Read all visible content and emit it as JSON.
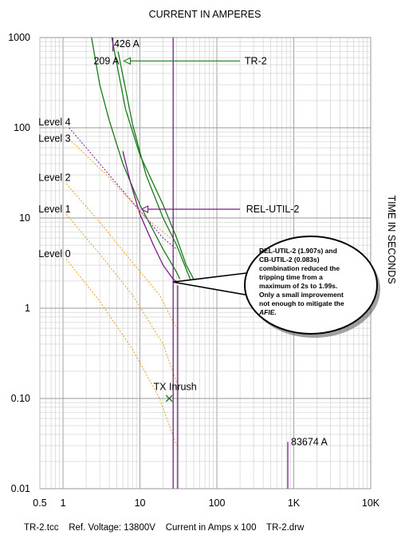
{
  "chart_data": {
    "type": "line",
    "title": "CURRENT IN AMPERES",
    "ylabel": "TIME IN SECONDS",
    "x_scale": "log",
    "y_scale": "log",
    "xlim": [
      0.5,
      10000
    ],
    "ylim": [
      0.01,
      1000
    ],
    "x_ticks": [
      {
        "v": 0.5,
        "label": "0.5"
      },
      {
        "v": 1,
        "label": "1"
      },
      {
        "v": 10,
        "label": "10"
      },
      {
        "v": 100,
        "label": "100"
      },
      {
        "v": 1000,
        "label": "1K"
      },
      {
        "v": 10000,
        "label": "10K"
      }
    ],
    "y_ticks": [
      {
        "v": 1000,
        "label": "1000"
      },
      {
        "v": 100,
        "label": "100"
      },
      {
        "v": 10,
        "label": "10"
      },
      {
        "v": 1,
        "label": "1"
      },
      {
        "v": 0.1,
        "label": "0.10"
      },
      {
        "v": 0.01,
        "label": "0.01"
      }
    ],
    "grid": true,
    "footer": "TR-2.tcc    Ref. Voltage: 13800V    Current in Amps x 100    TR-2.drw",
    "colors": {
      "green": "#1a7a1a",
      "purple": "#7a1a8a",
      "red": "#c81e1e",
      "orange": "#e8a020"
    },
    "series": [
      {
        "key": "tr2_left",
        "color": "green",
        "style": "solid",
        "points": [
          [
            2.35,
            1000
          ],
          [
            3,
            300
          ],
          [
            4,
            120
          ],
          [
            6,
            40
          ],
          [
            10,
            14
          ],
          [
            20,
            4.5
          ],
          [
            30,
            2.5
          ],
          [
            33,
            2.1
          ]
        ]
      },
      {
        "key": "tr2_right",
        "color": "green",
        "style": "solid",
        "points": [
          [
            4.3,
            1000
          ],
          [
            6.5,
            160
          ],
          [
            10,
            50
          ],
          [
            20,
            14
          ],
          [
            30,
            6
          ],
          [
            40,
            3
          ],
          [
            55,
            1.8
          ]
        ]
      },
      {
        "key": "tr2_mid",
        "color": "green",
        "style": "solid",
        "points": [
          [
            5.2,
            700
          ],
          [
            8,
            110
          ],
          [
            12,
            30
          ],
          [
            20,
            10
          ],
          [
            30,
            5
          ],
          [
            45,
            2.1
          ]
        ]
      },
      {
        "key": "rel_util_2",
        "color": "purple",
        "style": "solid",
        "points": [
          [
            6,
            55
          ],
          [
            7.5,
            25
          ],
          [
            10,
            11
          ],
          [
            15,
            5
          ],
          [
            20,
            3
          ],
          [
            27,
            2.1
          ],
          [
            32,
            1.9
          ]
        ]
      },
      {
        "key": "level4_curve",
        "color": "purple",
        "style": "dotted",
        "points": [
          [
            1.2,
            100
          ],
          [
            3,
            40
          ],
          [
            8,
            15
          ],
          [
            20,
            6
          ],
          [
            30,
            4.5
          ]
        ]
      },
      {
        "key": "level3_curve",
        "color": "orange",
        "style": "dotted",
        "points": [
          [
            1.2,
            75
          ],
          [
            4,
            28
          ],
          [
            12,
            10
          ],
          [
            25,
            6
          ]
        ]
      },
      {
        "key": "level2_curve",
        "color": "orange",
        "style": "dotted",
        "points": [
          [
            1.1,
            24
          ],
          [
            3,
            9
          ],
          [
            8,
            3.2
          ],
          [
            18,
            1.4
          ],
          [
            30,
            0.6
          ]
        ]
      },
      {
        "key": "level1_curve",
        "color": "orange",
        "style": "dotted",
        "points": [
          [
            1.1,
            11
          ],
          [
            3,
            4
          ],
          [
            8,
            1.4
          ],
          [
            20,
            0.4
          ],
          [
            30,
            0.15
          ]
        ]
      },
      {
        "key": "level0_curve",
        "color": "orange",
        "style": "dotted",
        "points": [
          [
            1.1,
            3.5
          ],
          [
            3,
            1.2
          ],
          [
            8,
            0.35
          ],
          [
            18,
            0.1
          ],
          [
            30,
            0.03
          ]
        ]
      },
      {
        "key": "vertical_426",
        "color": "purple",
        "style": "solid",
        "points": [
          [
            27,
            0.01
          ],
          [
            27,
            1000
          ]
        ]
      },
      {
        "key": "vertical_31",
        "color": "purple",
        "style": "solid",
        "points": [
          [
            31,
            0.01
          ],
          [
            31,
            1.8
          ]
        ]
      },
      {
        "key": "marker_83674",
        "color": "purple",
        "style": "solid",
        "points": [
          [
            836.74,
            0.01
          ],
          [
            836.74,
            0.033
          ]
        ]
      }
    ],
    "annotations": [
      {
        "key": "a426",
        "text": "426 A",
        "x": 4.6,
        "y": 850,
        "color": "purple",
        "leader": [
          [
            4.45,
            700
          ],
          [
            4.45,
            1000
          ]
        ]
      },
      {
        "key": "a209",
        "text": "209 A",
        "x": 2.5,
        "y": 550,
        "color": "green"
      },
      {
        "key": "tr2",
        "text": "TR-2",
        "x": 230,
        "y": 550,
        "color": "green",
        "leader": [
          [
            6.2,
            550
          ],
          [
            200,
            550
          ]
        ]
      },
      {
        "key": "relutil",
        "text": "REL-UTIL-2",
        "x": 240,
        "y": 12.5,
        "color": "purple",
        "leader": [
          [
            10.5,
            12.5
          ],
          [
            200,
            12.5
          ]
        ]
      },
      {
        "key": "level4",
        "text": "Level 4",
        "x": 0.48,
        "y": 115,
        "color": "red"
      },
      {
        "key": "level3",
        "text": "Level 3",
        "x": 0.48,
        "y": 76,
        "color": "orange"
      },
      {
        "key": "level2",
        "text": "Level 2",
        "x": 0.48,
        "y": 28,
        "color": "orange"
      },
      {
        "key": "level1",
        "text": "Level 1",
        "x": 0.48,
        "y": 12.5,
        "color": "orange"
      },
      {
        "key": "level0",
        "text": "Level 0",
        "x": 0.48,
        "y": 4,
        "color": "orange"
      },
      {
        "key": "txinrush",
        "text": "TX Inrush",
        "x": 15,
        "y": 0.135,
        "color": "green"
      },
      {
        "key": "a83674",
        "text": "83674 A",
        "x": 920,
        "y": 0.033,
        "color": "purple"
      }
    ],
    "tx_inrush_point": {
      "x": 24,
      "y": 0.1
    },
    "callout": {
      "lines": [
        "REL-UTIL-2 (1.907s) and",
        "CB-UTIL-2 (0.083s)",
        "combination reduced the",
        "tripping time from a",
        "maximum of 2s to 1.99s.",
        "Only a small improvement",
        "not enough to mitigate the"
      ],
      "last_word": "AFIE",
      "last_suffix": ".",
      "color": "red",
      "target": {
        "x": 27,
        "y": 1.95
      }
    }
  }
}
